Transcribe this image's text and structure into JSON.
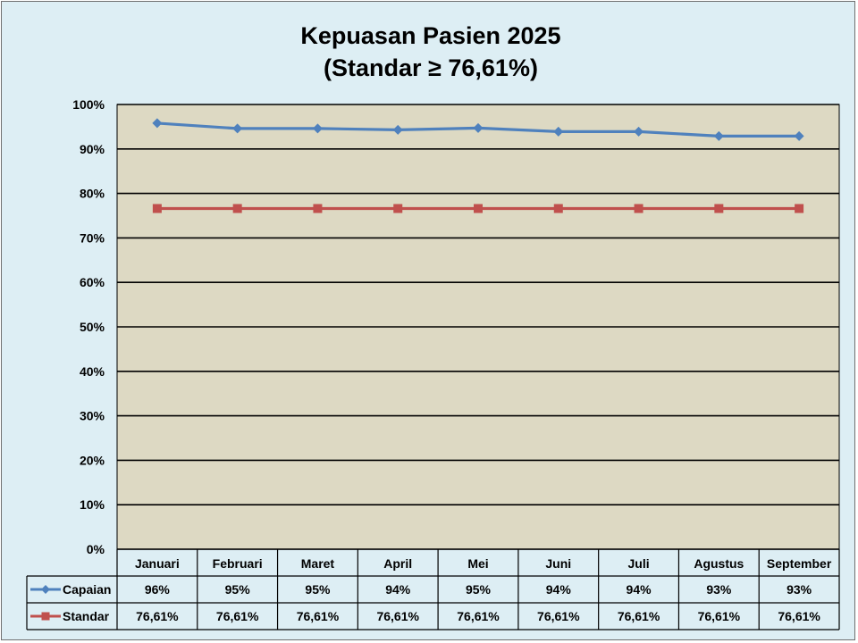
{
  "chart_data": {
    "type": "line",
    "title": "Kepuasan Pasien 2025",
    "subtitle": "(Standar ≥ 76,61%)",
    "categories": [
      "Januari",
      "Februari",
      "Maret",
      "April",
      "Mei",
      "Juni",
      "Juli",
      "Agustus",
      "September"
    ],
    "y_ticks": [
      "0%",
      "10%",
      "20%",
      "30%",
      "40%",
      "50%",
      "60%",
      "70%",
      "80%",
      "90%",
      "100%"
    ],
    "ylim": [
      0,
      100
    ],
    "grid": true,
    "legend_placement": "data-table-left",
    "series": [
      {
        "name": "Capaian",
        "color": "#4f81bd",
        "marker": "diamond",
        "values": [
          95.8,
          94.6,
          94.6,
          94.3,
          94.7,
          93.9,
          93.9,
          92.9,
          92.9
        ],
        "labels": [
          "96%",
          "95%",
          "95%",
          "94%",
          "95%",
          "94%",
          "94%",
          "93%",
          "93%"
        ]
      },
      {
        "name": "Standar",
        "color": "#c0504d",
        "marker": "square",
        "values": [
          76.61,
          76.61,
          76.61,
          76.61,
          76.61,
          76.61,
          76.61,
          76.61,
          76.61
        ],
        "labels": [
          "76,61%",
          "76,61%",
          "76,61%",
          "76,61%",
          "76,61%",
          "76,61%",
          "76,61%",
          "76,61%",
          "76,61%"
        ]
      }
    ],
    "plot_background": "#ddd9c3"
  }
}
